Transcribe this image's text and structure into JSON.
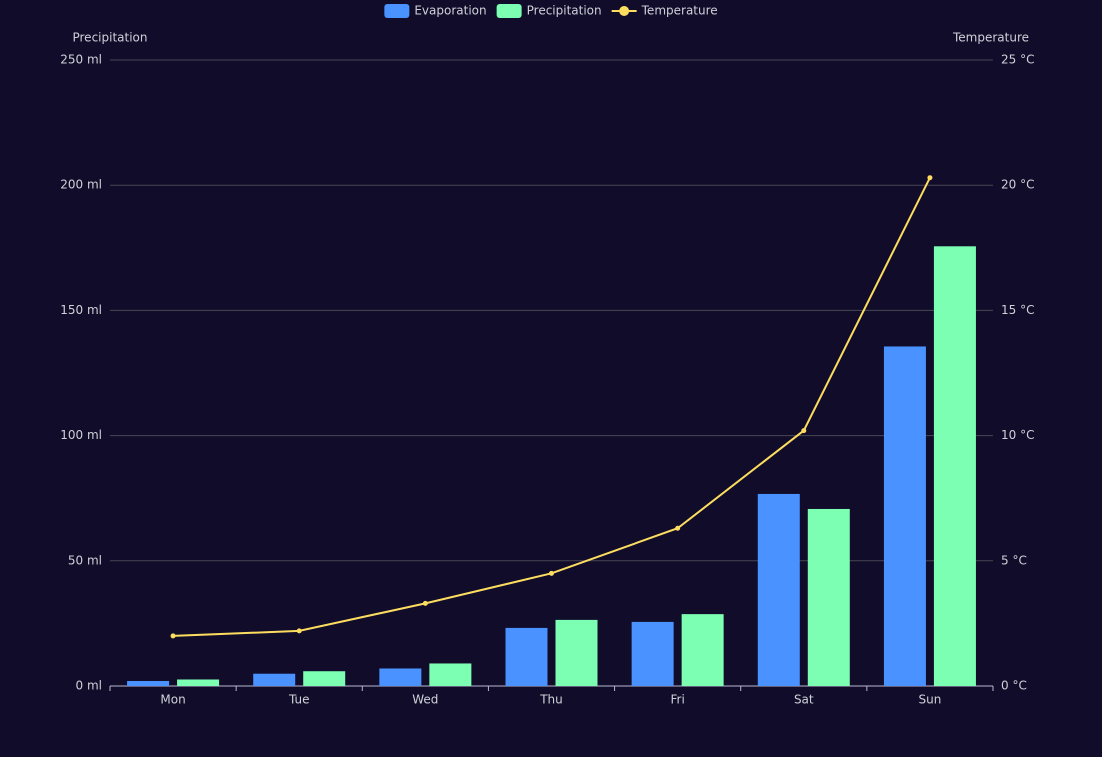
{
  "chart_data": {
    "type": "bar-line",
    "categories": [
      "Mon",
      "Tue",
      "Wed",
      "Thu",
      "Fri",
      "Sat",
      "Sun"
    ],
    "series": [
      {
        "name": "Evaporation",
        "type": "bar",
        "color": "#4992ff",
        "values": [
          2.0,
          4.9,
          7.0,
          23.2,
          25.6,
          76.7,
          135.6
        ]
      },
      {
        "name": "Precipitation",
        "type": "bar",
        "color": "#7cffb2",
        "values": [
          2.6,
          5.9,
          9.0,
          26.4,
          28.7,
          70.7,
          175.6
        ]
      },
      {
        "name": "Temperature",
        "type": "line",
        "axis": "y2",
        "color": "#fddd60",
        "values": [
          2.0,
          2.2,
          3.3,
          4.5,
          6.3,
          10.2,
          20.3
        ]
      }
    ],
    "y_label": "Precipitation",
    "y2_label": "Temperature",
    "ylim": [
      0,
      250
    ],
    "yticks": [
      {
        "value": 0,
        "label": "0 ml"
      },
      {
        "value": 50,
        "label": "50 ml"
      },
      {
        "value": 100,
        "label": "100 ml"
      },
      {
        "value": 150,
        "label": "150 ml"
      },
      {
        "value": 200,
        "label": "200 ml"
      },
      {
        "value": 250,
        "label": "250 ml"
      }
    ],
    "y2lim": [
      0,
      25
    ],
    "y2ticks": [
      {
        "value": 0,
        "label": "0 °C"
      },
      {
        "value": 5,
        "label": "5 °C"
      },
      {
        "value": 10,
        "label": "10 °C"
      },
      {
        "value": 15,
        "label": "15 °C"
      },
      {
        "value": 20,
        "label": "20 °C"
      },
      {
        "value": 25,
        "label": "25 °C"
      }
    ],
    "grid": true,
    "legend": "top"
  }
}
